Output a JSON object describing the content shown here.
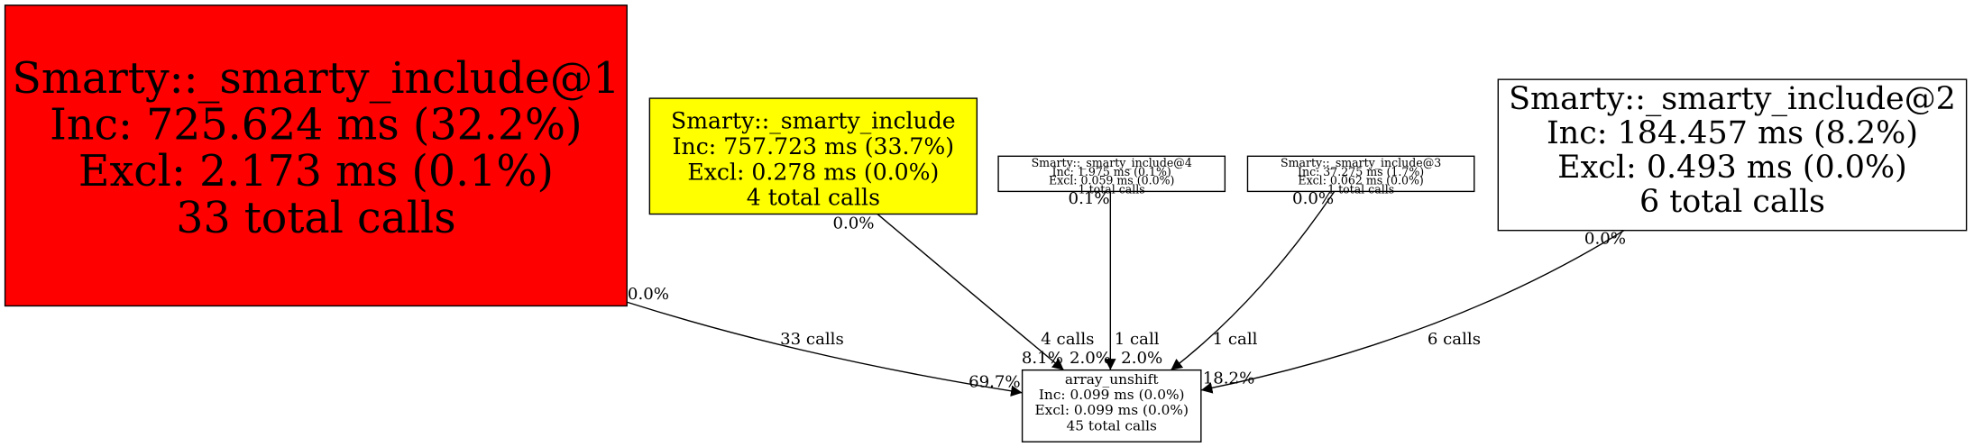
{
  "nodes": [
    {
      "lines": [
        "Smarty::_smarty_include@1",
        "Inc: 725.624 ms (32.2%)",
        "Excl: 2.173 ms (0.1%)",
        "33 total calls"
      ],
      "color": "#ff0000"
    },
    {
      "lines": [
        "Smarty::_smarty_include",
        "Inc: 757.723 ms (33.7%)",
        "Excl: 0.278 ms (0.0%)",
        "4 total calls"
      ],
      "color": "#ffff00"
    },
    {
      "lines": [
        "Smarty::_smarty_include@4",
        "Inc: 1.975 ms (0.1%)",
        "Excl: 0.059 ms (0.0%)",
        "1 total calls"
      ],
      "color": "#ffffff"
    },
    {
      "lines": [
        "Smarty::_smarty_include@3",
        "Inc: 37.275 ms (1.7%)",
        "Excl: 0.062 ms (0.0%)",
        "1 total calls"
      ],
      "color": "#ffffff"
    },
    {
      "lines": [
        "Smarty::_smarty_include@2",
        "Inc: 184.457 ms (8.2%)",
        "Excl: 0.493 ms (0.0%)",
        "6 total calls"
      ],
      "color": "#ffffff"
    },
    {
      "lines": [
        "array_unshift",
        "Inc: 0.099 ms (0.0%)",
        "Excl: 0.099 ms (0.0%)",
        "45 total calls"
      ],
      "color": "#ffffff"
    }
  ],
  "edges": [
    {
      "label": "33 calls",
      "tail_label": "0.0%",
      "head_label": "69.7%"
    },
    {
      "label": "4 calls",
      "tail_label": "0.0%",
      "head_label": "8.1%"
    },
    {
      "label": "1 call",
      "tail_label": "0.1%",
      "head_label": "2.0%"
    },
    {
      "label": "1 call",
      "tail_label": "0.0%",
      "head_label": "2.0%"
    },
    {
      "label": "6 calls",
      "tail_label": "0.0%",
      "head_label": "18.2%"
    }
  ]
}
